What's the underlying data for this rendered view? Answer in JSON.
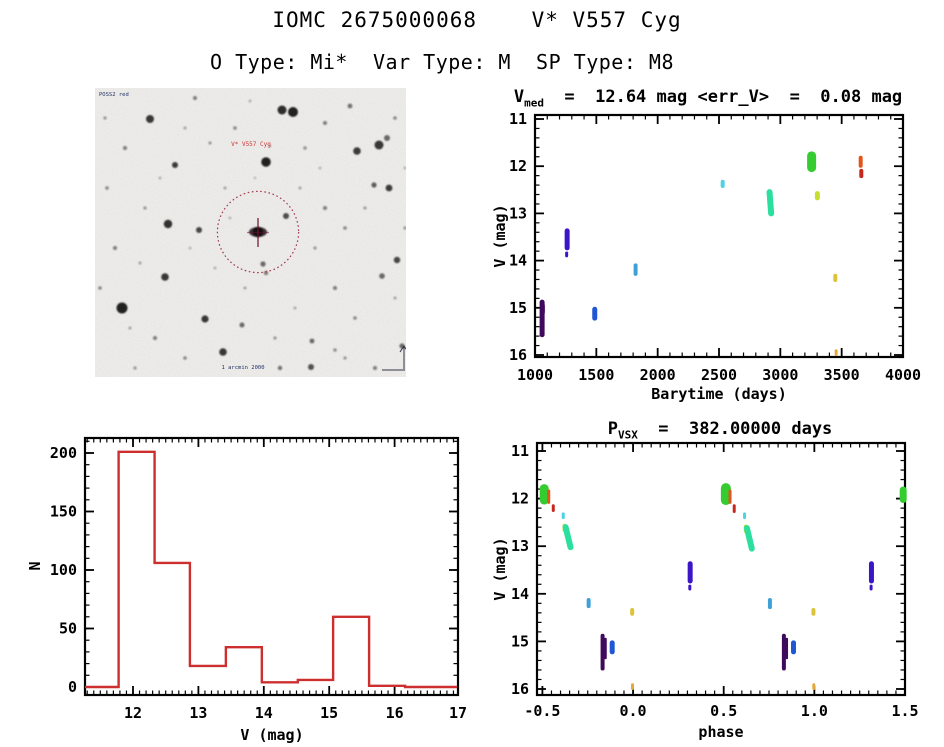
{
  "page": {
    "title": "IOMC 2675000068    V* V557 Cyg",
    "subtitle": "O Type: Mi*  Var Type: M  SP Type: M8"
  },
  "finder": {
    "survey_label": "POSS2 red",
    "target_label": "V* V557 Cyg",
    "bottom_label": "1 arcmin 2000",
    "circle_color": "#a43a4a",
    "background": "#f3f2ef",
    "stars": [
      [
        187,
        22,
        4.5,
        0.9
      ],
      [
        198,
        24,
        5,
        0.95
      ],
      [
        55,
        31,
        4,
        0.85
      ],
      [
        80,
        77,
        3,
        0.8
      ],
      [
        171,
        74,
        4.8,
        0.95
      ],
      [
        284,
        57,
        4.5,
        0.85
      ],
      [
        262,
        63,
        3.8,
        0.8
      ],
      [
        292,
        50,
        3,
        0.6
      ],
      [
        73,
        136,
        4.2,
        0.88
      ],
      [
        104,
        142,
        3,
        0.75
      ],
      [
        27,
        220,
        5.5,
        0.95
      ],
      [
        70,
        189,
        3.8,
        0.85
      ],
      [
        110,
        231,
        3.6,
        0.82
      ],
      [
        128,
        264,
        3.8,
        0.85
      ],
      [
        147,
        237,
        2.5,
        0.6
      ],
      [
        216,
        279,
        3,
        0.7
      ],
      [
        185,
        280,
        2.2,
        0.55
      ],
      [
        302,
        172,
        3.2,
        0.75
      ],
      [
        287,
        188,
        2.8,
        0.6
      ],
      [
        294,
        100,
        3.4,
        0.8
      ],
      [
        279,
        97,
        2.6,
        0.65
      ],
      [
        191,
        128,
        3,
        0.72
      ],
      [
        168,
        176,
        2.6,
        0.6
      ],
      [
        171,
        185,
        2.2,
        0.5
      ],
      [
        217,
        253,
        2.4,
        0.6
      ],
      [
        307,
        258,
        2.6,
        0.6
      ],
      [
        100,
        10,
        2,
        0.5
      ],
      [
        140,
        40,
        1.8,
        0.45
      ],
      [
        230,
        35,
        2,
        0.5
      ],
      [
        255,
        18,
        2.4,
        0.55
      ],
      [
        210,
        60,
        1.8,
        0.4
      ],
      [
        30,
        60,
        2,
        0.5
      ],
      [
        12,
        100,
        1.8,
        0.45
      ],
      [
        50,
        120,
        1.6,
        0.4
      ],
      [
        20,
        160,
        2,
        0.5
      ],
      [
        60,
        250,
        2,
        0.5
      ],
      [
        90,
        270,
        1.8,
        0.45
      ],
      [
        40,
        280,
        1.6,
        0.4
      ],
      [
        130,
        100,
        1.5,
        0.35
      ],
      [
        230,
        120,
        2,
        0.5
      ],
      [
        250,
        140,
        1.8,
        0.45
      ],
      [
        270,
        120,
        1.5,
        0.4
      ],
      [
        220,
        160,
        1.6,
        0.4
      ],
      [
        240,
        200,
        2,
        0.5
      ],
      [
        260,
        230,
        1.8,
        0.45
      ],
      [
        150,
        200,
        1.5,
        0.35
      ],
      [
        120,
        180,
        1.4,
        0.3
      ],
      [
        300,
        30,
        1.8,
        0.45
      ],
      [
        310,
        140,
        1.6,
        0.4
      ],
      [
        180,
        250,
        1.6,
        0.4
      ],
      [
        200,
        220,
        1.4,
        0.35
      ],
      [
        90,
        40,
        1.5,
        0.35
      ],
      [
        10,
        30,
        1.6,
        0.4
      ],
      [
        5,
        200,
        1.8,
        0.45
      ],
      [
        155,
        13,
        1.4,
        0.3
      ],
      [
        280,
        280,
        2,
        0.5
      ],
      [
        250,
        270,
        1.6,
        0.4
      ],
      [
        35,
        240,
        1.5,
        0.35
      ],
      [
        65,
        90,
        1.4,
        0.3
      ],
      [
        95,
        160,
        1.3,
        0.3
      ],
      [
        135,
        130,
        1.3,
        0.3
      ],
      [
        205,
        100,
        1.5,
        0.35
      ],
      [
        225,
        80,
        1.3,
        0.3
      ],
      [
        300,
        210,
        1.5,
        0.35
      ],
      [
        310,
        80,
        1.4,
        0.3
      ],
      [
        175,
        58,
        1.3,
        0.3
      ],
      [
        160,
        90,
        1.2,
        0.28
      ],
      [
        45,
        175,
        1.5,
        0.35
      ],
      [
        240,
        262,
        1.8,
        0.42
      ],
      [
        115,
        55,
        1.6,
        0.38
      ]
    ]
  },
  "chart_data": [
    {
      "id": "barytime",
      "type": "scatter",
      "title": {
        "lead": "V",
        "sub": "med",
        "rest": "  =  12.64 mag <err_V>  =  0.08 mag"
      },
      "xlabel": "Barytime (days)",
      "ylabel": "V (mag)",
      "xlim": [
        1000,
        4000
      ],
      "ylim": [
        16,
        11
      ],
      "y_inverted": true,
      "grid": false,
      "xticks": [
        1000,
        1500,
        2000,
        2500,
        3000,
        3500,
        4000
      ],
      "xtick_labels": [
        "1000",
        "1500",
        "2000",
        "2500",
        "3000",
        "3500",
        "4000"
      ],
      "yticks": [
        11,
        12,
        13,
        14,
        15,
        16
      ],
      "ytick_labels": [
        "11",
        "12",
        "13",
        "14",
        "15",
        "16"
      ],
      "x_minor": 100,
      "y_minor": 0.2,
      "points": [
        {
          "x": 1058,
          "v": [
            14.88,
            15.57
          ],
          "w": 5,
          "c": "#400a5c"
        },
        {
          "x": 1068,
          "v": [
            14.95,
            15.1
          ],
          "w": 3,
          "c": "#400a5c"
        },
        {
          "x": 1262,
          "v": [
            13.37,
            13.73
          ],
          "w": 5,
          "c": "#3a16c8"
        },
        {
          "x": 1258,
          "v": [
            13.84,
            13.9
          ],
          "w": 3,
          "c": "#3a16c8"
        },
        {
          "x": 1487,
          "v": [
            15.03,
            15.22
          ],
          "w": 5,
          "c": "#2257d4"
        },
        {
          "x": 1820,
          "v": [
            14.1,
            14.28
          ],
          "w": 4,
          "c": "#3fa0d8"
        },
        {
          "x": 2530,
          "v": [
            12.33,
            12.42
          ],
          "w": 4,
          "c": "#4fd2e4"
        },
        {
          "x": 2912,
          "x2": 2925,
          "v": [
            12.55,
            13.0
          ],
          "w": 6,
          "c": "#2bdf9e"
        },
        {
          "x": 3255,
          "v": [
            11.78,
            12.03
          ],
          "w": 9,
          "c": "#35cc30"
        },
        {
          "x": 3262,
          "v": [
            11.95,
            12.05
          ],
          "w": 5,
          "c": "#35cc30"
        },
        {
          "x": 3302,
          "v": [
            12.58,
            12.67
          ],
          "w": 5,
          "c": "#c6df2e"
        },
        {
          "x": 3448,
          "v": [
            14.32,
            14.41
          ],
          "w": 4,
          "c": "#dcc43a"
        },
        {
          "x": 3455,
          "v": [
            15.91,
            15.99
          ],
          "w": 3,
          "c": "#e2a93c"
        },
        {
          "x": 3655,
          "v": [
            11.82,
            11.99
          ],
          "w": 4,
          "c": "#e0561c"
        },
        {
          "x": 3660,
          "v": [
            12.1,
            12.21
          ],
          "w": 4,
          "c": "#c6281e"
        }
      ]
    },
    {
      "id": "histogram",
      "type": "bar",
      "title": null,
      "xlabel": "V (mag)",
      "ylabel": "N",
      "xlim": [
        11.27,
        16.97
      ],
      "ylim": [
        -7,
        213
      ],
      "grid": false,
      "xticks": [
        12,
        13,
        14,
        15,
        16,
        17
      ],
      "xtick_labels": [
        "12",
        "13",
        "14",
        "15",
        "16",
        "17"
      ],
      "yticks": [
        0,
        50,
        100,
        150,
        200
      ],
      "ytick_labels": [
        "0",
        "50",
        "100",
        "150",
        "200"
      ],
      "x_minor": 0.1,
      "y_minor": 10,
      "bar_color": "#cd2f2f",
      "bin_edges": [
        11.78,
        12.33,
        12.87,
        13.42,
        13.97,
        14.52,
        15.06,
        15.61,
        16.16
      ],
      "counts": [
        201,
        106,
        18,
        34,
        4,
        6,
        60,
        1
      ]
    },
    {
      "id": "phase",
      "type": "scatter",
      "title": {
        "lead": "P",
        "sub": "VSX",
        "rest": "  =  382.00000 days"
      },
      "xlabel": "phase",
      "ylabel": "V (mag)",
      "xlim": [
        -0.53,
        1.5
      ],
      "ylim": [
        16,
        11
      ],
      "y_inverted": true,
      "grid": false,
      "xticks": [
        -0.5,
        0.0,
        0.5,
        1.0,
        1.5
      ],
      "xtick_labels": [
        "-0.5",
        "0.0",
        "0.5",
        "1.0",
        "1.5"
      ],
      "yticks": [
        11,
        12,
        13,
        14,
        15,
        16
      ],
      "ytick_labels": [
        "11",
        "12",
        "13",
        "14",
        "15",
        "16"
      ],
      "x_minor": 0.05,
      "y_minor": 0.2,
      "period_days": 382.0,
      "points": [
        {
          "x": -0.49,
          "v": [
            11.79,
            12.03
          ],
          "w": 9,
          "c": "#35cc30"
        },
        {
          "x": -0.465,
          "v": [
            11.84,
            12.08
          ],
          "w": 3,
          "c": "#e0561c"
        },
        {
          "x": -0.44,
          "v": [
            12.15,
            12.25
          ],
          "w": 3,
          "c": "#c6281e"
        },
        {
          "x": -0.385,
          "v": [
            12.32,
            12.4
          ],
          "w": 3,
          "c": "#4fd2e4"
        },
        {
          "x": -0.378,
          "v": [
            12.57,
            12.66
          ],
          "w": 4,
          "c": "#c6df2e"
        },
        {
          "x": -0.372,
          "x2": -0.345,
          "v": [
            12.6,
            13.02
          ],
          "w": 6,
          "c": "#2bdf9e"
        },
        {
          "x": -0.245,
          "v": [
            14.13,
            14.26
          ],
          "w": 4,
          "c": "#3fa0d8"
        },
        {
          "x": -0.168,
          "v": [
            14.88,
            15.57
          ],
          "w": 4,
          "c": "#400a5c"
        },
        {
          "x": -0.152,
          "v": [
            14.95,
            15.35
          ],
          "w": 2.5,
          "c": "#400a5c"
        },
        {
          "x": -0.115,
          "v": [
            15.03,
            15.22
          ],
          "w": 5,
          "c": "#2257d4"
        },
        {
          "x": -0.005,
          "v": [
            14.34,
            14.42
          ],
          "w": 4,
          "c": "#dcc43a"
        },
        {
          "x": -0.003,
          "v": [
            15.91,
            15.99
          ],
          "w": 3,
          "c": "#e2a93c"
        },
        {
          "x": 0.315,
          "v": [
            13.37,
            13.73
          ],
          "w": 5,
          "c": "#3a16c8"
        },
        {
          "x": 0.313,
          "v": [
            13.84,
            13.9
          ],
          "w": 3,
          "c": "#3a16c8"
        },
        {
          "x": 0.512,
          "v": [
            11.78,
            12.03
          ],
          "w": 10,
          "c": "#35cc30"
        },
        {
          "x": 0.535,
          "v": [
            11.84,
            12.08
          ],
          "w": 3,
          "c": "#e0561c"
        },
        {
          "x": 0.558,
          "v": [
            12.15,
            12.27
          ],
          "w": 3,
          "c": "#c6281e"
        },
        {
          "x": 0.615,
          "v": [
            12.32,
            12.4
          ],
          "w": 3,
          "c": "#4fd2e4"
        },
        {
          "x": 0.622,
          "v": [
            12.59,
            12.68
          ],
          "w": 4,
          "c": "#c6df2e"
        },
        {
          "x": 0.628,
          "x2": 0.655,
          "v": [
            12.62,
            13.05
          ],
          "w": 6,
          "c": "#2bdf9e"
        },
        {
          "x": 0.755,
          "v": [
            14.13,
            14.28
          ],
          "w": 4,
          "c": "#3fa0d8"
        },
        {
          "x": 0.832,
          "v": [
            14.88,
            15.57
          ],
          "w": 4,
          "c": "#400a5c"
        },
        {
          "x": 0.848,
          "v": [
            14.95,
            15.35
          ],
          "w": 2.5,
          "c": "#400a5c"
        },
        {
          "x": 0.885,
          "v": [
            15.03,
            15.22
          ],
          "w": 5,
          "c": "#2257d4"
        },
        {
          "x": 0.995,
          "v": [
            14.34,
            14.42
          ],
          "w": 4,
          "c": "#dcc43a"
        },
        {
          "x": 0.997,
          "v": [
            15.91,
            15.99
          ],
          "w": 3,
          "c": "#e2a93c"
        },
        {
          "x": 1.315,
          "v": [
            13.37,
            13.73
          ],
          "w": 5,
          "c": "#3a16c8"
        },
        {
          "x": 1.313,
          "v": [
            13.84,
            13.9
          ],
          "w": 3,
          "c": "#3a16c8"
        },
        {
          "x": 1.49,
          "v": [
            11.82,
            12.02
          ],
          "w": 7,
          "c": "#35cc30"
        }
      ]
    }
  ]
}
